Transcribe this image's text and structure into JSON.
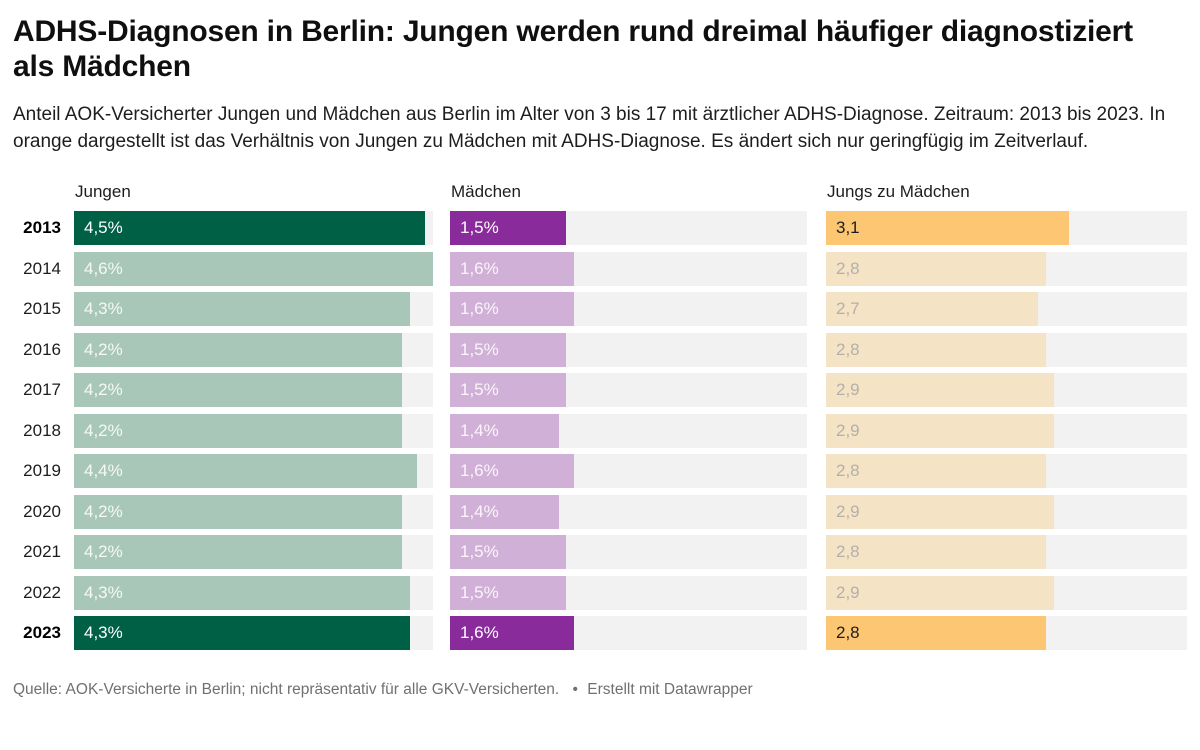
{
  "header": {
    "title": "ADHS-Diagnosen in Berlin: Jungen werden rund dreimal häufiger diagnostiziert als Mädchen",
    "description": "Anteil AOK-Versicherter Jungen und Mädchen aus Berlin im Alter von 3 bis 17 mit ärztlicher ADHS-Diagnose. Zeitraum: 2013 bis 2023. In orange dargestellt ist das Verhältnis von Jungen zu Mädchen mit ADHS-Diagnose. Es ändert sich nur geringfügig im Zeitverlauf."
  },
  "columns": {
    "jungen": "Jungen",
    "maedchen": "Mädchen",
    "ratio": "Jungs zu Mädchen"
  },
  "footer": {
    "source": "Quelle: AOK-Versicherte in Berlin; nicht repräsentativ für alle GKV-Versicherten.",
    "separator": "•",
    "attribution": "Erstellt mit Datawrapper"
  },
  "colors": {
    "jungen_dark": "#006045",
    "jungen_light": "#a9c7b9",
    "maedchen_dark": "#8a2b9c",
    "maedchen_light": "#d1b0d7",
    "ratio_dark": "#fdc673",
    "ratio_light": "#f5e3c6",
    "track_background": "#f2f2f2"
  },
  "chart_data": {
    "type": "bar",
    "subtype": "bar-table with three aligned bar columns sharing one numeric scale",
    "title": "ADHS-Diagnosen in Berlin: Jungen werden rund dreimal häufiger diagnostiziert als Mädchen",
    "categories": [
      "2013",
      "2014",
      "2015",
      "2016",
      "2017",
      "2018",
      "2019",
      "2020",
      "2021",
      "2022",
      "2023"
    ],
    "series": [
      {
        "name": "Jungen",
        "unit": "%",
        "values": [
          4.5,
          4.6,
          4.3,
          4.2,
          4.2,
          4.2,
          4.4,
          4.2,
          4.2,
          4.3,
          4.3
        ],
        "labels": [
          "4,5%",
          "4,6%",
          "4,3%",
          "4,2%",
          "4,2%",
          "4,2%",
          "4,4%",
          "4,2%",
          "4,2%",
          "4,3%",
          "4,3%"
        ]
      },
      {
        "name": "Mädchen",
        "unit": "%",
        "values": [
          1.5,
          1.6,
          1.6,
          1.5,
          1.5,
          1.4,
          1.6,
          1.4,
          1.5,
          1.5,
          1.6
        ],
        "labels": [
          "1,5%",
          "1,6%",
          "1,6%",
          "1,5%",
          "1,5%",
          "1,4%",
          "1,6%",
          "1,4%",
          "1,5%",
          "1,5%",
          "1,6%"
        ]
      },
      {
        "name": "Jungs zu Mädchen",
        "unit": "ratio",
        "values": [
          3.1,
          2.8,
          2.7,
          2.8,
          2.9,
          2.9,
          2.8,
          2.9,
          2.8,
          2.9,
          2.8
        ],
        "labels": [
          "3,1",
          "2,8",
          "2,7",
          "2,8",
          "2,9",
          "2,9",
          "2,8",
          "2,9",
          "2,8",
          "2,9",
          "2,8"
        ]
      }
    ],
    "scale_max": 4.6,
    "highlighted_rows": [
      "2013",
      "2023"
    ],
    "legend_position": "column headers above bars",
    "grid": false
  }
}
